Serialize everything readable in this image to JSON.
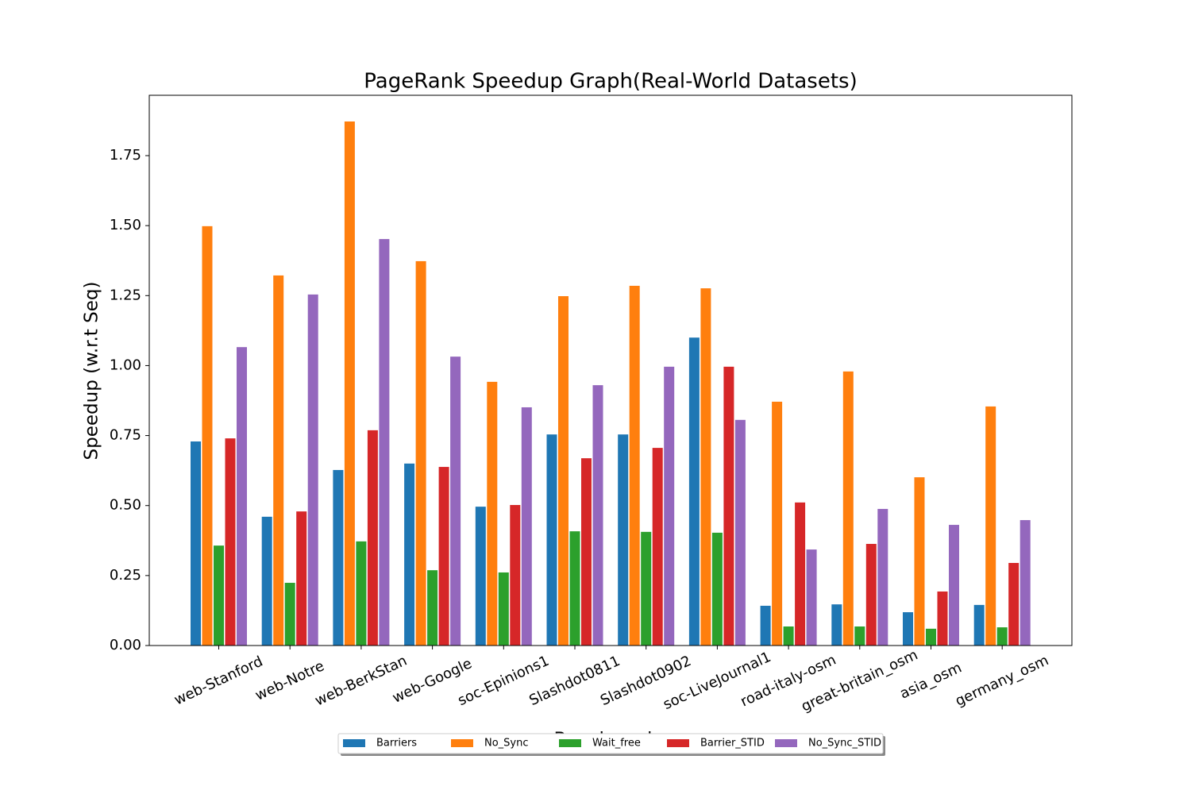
{
  "chart_data": {
    "type": "bar",
    "title": "PageRank Speedup Graph(Real-World Datasets)",
    "x_label": "Benchmarks",
    "y_label": "Speedup (w.r.t Seq)",
    "categories": [
      "web-Stanford",
      "web-Notre",
      "web-BerkStan",
      "web-Google",
      "soc-Epinions1",
      "Slashdot0811",
      "Slashdot0902",
      "soc-LiveJournal1",
      "road-italy-osm",
      "great-britain_osm",
      "asia_osm",
      "germany_osm"
    ],
    "series": [
      {
        "name": "Barriers",
        "color": "#1f77b4",
        "values": [
          0.729,
          0.46,
          0.627,
          0.65,
          0.496,
          0.754,
          0.754,
          1.1,
          0.142,
          0.147,
          0.119,
          0.145
        ]
      },
      {
        "name": "No_Sync",
        "color": "#ff7f0e",
        "values": [
          1.498,
          1.322,
          1.872,
          1.373,
          0.942,
          1.248,
          1.285,
          1.276,
          0.871,
          0.979,
          0.601,
          0.854
        ]
      },
      {
        "name": "Wait_free",
        "color": "#2ca02c",
        "values": [
          0.357,
          0.224,
          0.372,
          0.269,
          0.261,
          0.408,
          0.406,
          0.403,
          0.068,
          0.068,
          0.06,
          0.065
        ]
      },
      {
        "name": "Barrier_STID",
        "color": "#d62728",
        "values": [
          0.74,
          0.479,
          0.769,
          0.638,
          0.502,
          0.669,
          0.706,
          0.996,
          0.511,
          0.363,
          0.193,
          0.295
        ]
      },
      {
        "name": "No_Sync_STID",
        "color": "#9467bd",
        "values": [
          1.066,
          1.254,
          1.452,
          1.032,
          0.851,
          0.93,
          0.996,
          0.806,
          0.343,
          0.488,
          0.431,
          0.448
        ]
      }
    ],
    "ylim": [
      0,
      1.9656
    ],
    "yticks": [
      {
        "value": 0,
        "label": "0.00"
      },
      0.25,
      {
        "value": 0.5,
        "label": "0.50"
      },
      0.75,
      {
        "value": 1,
        "label": "1.00"
      },
      1.25,
      {
        "value": 1.5,
        "label": "1.50"
      },
      1.75
    ],
    "legend": "lower center"
  }
}
